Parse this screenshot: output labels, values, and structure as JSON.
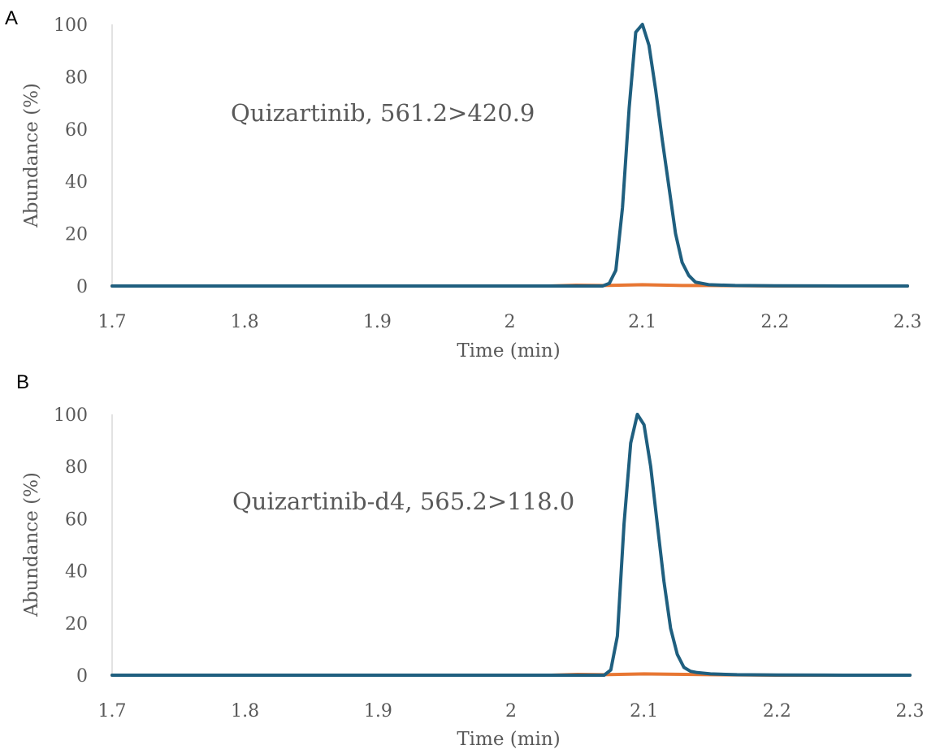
{
  "chart_data": [
    {
      "type": "line",
      "panel_label": "A",
      "annotation": "Quizartinib, 561.2>420.9",
      "xlabel": "Time (min)",
      "ylabel": "Abundance (%)",
      "xlim": [
        1.7,
        2.3
      ],
      "ylim": [
        0,
        100
      ],
      "x_ticks": [
        "1.7",
        "1.8",
        "1.9",
        "2",
        "2.1",
        "2.2",
        "2.3"
      ],
      "y_ticks": [
        "0",
        "20",
        "40",
        "60",
        "80",
        "100"
      ],
      "grid": false,
      "series": [
        {
          "color": "#1f5f7f",
          "x": [
            1.7,
            2.0,
            2.07,
            2.075,
            2.08,
            2.085,
            2.09,
            2.095,
            2.1,
            2.105,
            2.11,
            2.115,
            2.12,
            2.125,
            2.13,
            2.135,
            2.14,
            2.15,
            2.17,
            2.2,
            2.25,
            2.3
          ],
          "y": [
            0,
            0,
            0,
            1,
            6,
            30,
            68,
            97,
            100,
            92,
            75,
            56,
            38,
            20,
            9,
            4,
            1.5,
            0.5,
            0.2,
            0.1,
            0,
            0
          ]
        },
        {
          "color": "#e87733",
          "x": [
            1.7,
            2.03,
            2.05,
            2.07,
            2.1,
            2.13,
            2.15,
            2.2,
            2.3
          ],
          "y": [
            0,
            0,
            0.3,
            0.2,
            0.5,
            0.2,
            0.2,
            0,
            0
          ]
        }
      ]
    },
    {
      "type": "line",
      "panel_label": "B",
      "annotation": "Quizartinib-d4, 565.2>118.0",
      "xlabel": "Time (min)",
      "ylabel": "Abundance (%)",
      "xlim": [
        1.7,
        2.3
      ],
      "ylim": [
        0,
        100
      ],
      "x_ticks": [
        "1.7",
        "1.8",
        "1.9",
        "2",
        "2.1",
        "2.2",
        "2.3"
      ],
      "y_ticks": [
        "0",
        "20",
        "40",
        "60",
        "80",
        "100"
      ],
      "grid": false,
      "series": [
        {
          "color": "#1f5f7f",
          "x": [
            1.7,
            2.0,
            2.07,
            2.075,
            2.08,
            2.085,
            2.09,
            2.095,
            2.1,
            2.105,
            2.11,
            2.115,
            2.12,
            2.125,
            2.13,
            2.135,
            2.14,
            2.15,
            2.17,
            2.2,
            2.25,
            2.3
          ],
          "y": [
            0,
            0,
            0,
            2,
            15,
            58,
            89,
            100,
            96,
            80,
            58,
            36,
            18,
            8,
            3,
            1.5,
            1,
            0.5,
            0.2,
            0.1,
            0,
            0
          ]
        },
        {
          "color": "#e87733",
          "x": [
            1.7,
            2.03,
            2.05,
            2.07,
            2.1,
            2.13,
            2.15,
            2.2,
            2.3
          ],
          "y": [
            0,
            0,
            0.3,
            0.2,
            0.5,
            0.3,
            0.2,
            0,
            0
          ]
        }
      ]
    }
  ]
}
